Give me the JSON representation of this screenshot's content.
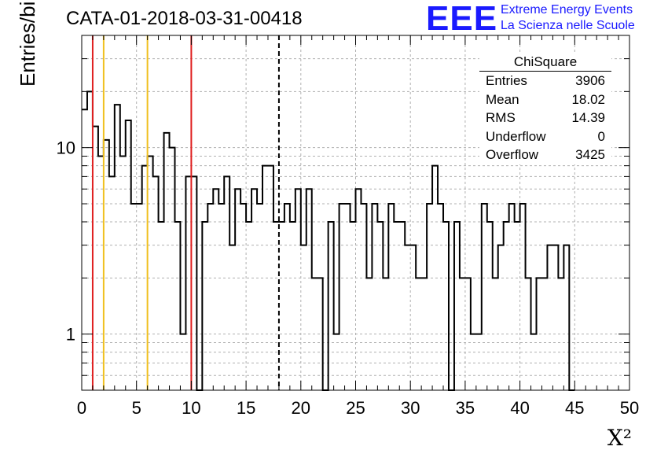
{
  "title": "CATA-01-2018-03-31-00418",
  "logo": {
    "mark": "EEE",
    "line1": "Extreme Energy Events",
    "line2": "La Scienza nelle Scuole"
  },
  "stats": {
    "header": "ChiSquare",
    "rows": [
      {
        "label": "Entries",
        "value": "3906"
      },
      {
        "label": "Mean",
        "value": "18.02"
      },
      {
        "label": "RMS",
        "value": "14.39"
      },
      {
        "label": "Underflow",
        "value": "0"
      },
      {
        "label": "Overflow",
        "value": "3425"
      }
    ]
  },
  "chart_data": {
    "type": "histogram",
    "ylabel": "Entries/bin",
    "xlabel": "X²",
    "xlim": [
      0,
      50
    ],
    "ylim": [
      0.5,
      40
    ],
    "yscale": "log",
    "grid": true,
    "bin_width": 0.5,
    "x_ticks": [
      "0",
      "5",
      "10",
      "15",
      "20",
      "25",
      "30",
      "35",
      "40",
      "45",
      "50"
    ],
    "y_ticks": [
      {
        "value": 1,
        "label": "1"
      },
      {
        "value": 10,
        "label": "10"
      }
    ],
    "values": [
      16,
      20,
      13,
      9,
      11,
      7,
      17,
      9,
      14,
      5,
      5,
      8,
      9,
      7,
      4,
      12,
      10,
      4,
      1,
      7,
      7,
      0,
      4,
      5,
      6,
      5,
      7,
      3,
      6,
      5,
      4,
      6,
      5,
      8,
      8,
      4,
      4,
      5,
      4,
      6,
      3,
      6,
      2,
      2,
      0,
      4,
      1,
      5,
      5,
      4,
      6,
      5,
      2,
      5,
      4,
      2,
      5,
      4,
      4,
      3,
      3,
      2,
      2,
      5,
      8,
      5,
      4,
      0,
      4,
      2,
      2,
      1,
      1,
      5,
      4,
      2,
      3,
      4,
      5,
      4,
      5,
      2,
      1,
      2,
      2,
      3,
      3,
      2,
      3,
      0
    ],
    "vertical_lines": [
      {
        "x": 1,
        "color": "#e02020",
        "style": "solid"
      },
      {
        "x": 2,
        "color": "#f0c020",
        "style": "solid"
      },
      {
        "x": 6,
        "color": "#f0c020",
        "style": "solid"
      },
      {
        "x": 10,
        "color": "#e02020",
        "style": "solid"
      },
      {
        "x": 18,
        "color": "#000000",
        "style": "dashed"
      }
    ]
  }
}
